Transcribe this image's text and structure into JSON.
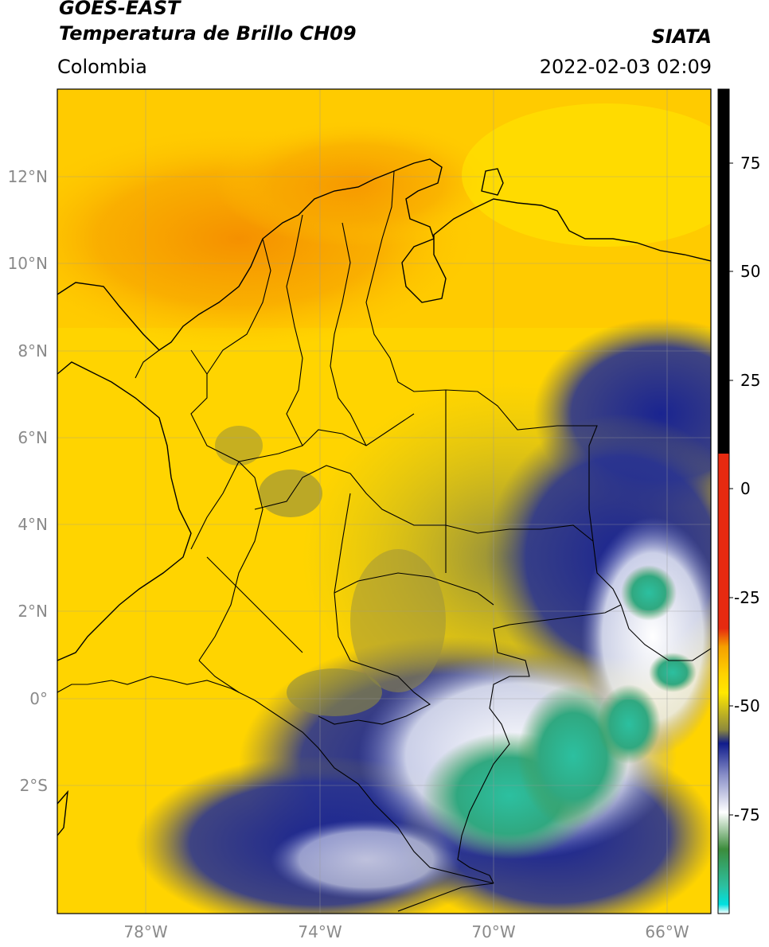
{
  "header": {
    "satellite": "GOES-EAST",
    "product": "Temperatura de Brillo CH09",
    "region": "Colombia",
    "agency": "SIATA",
    "datetime": "2022-02-03 02:09"
  },
  "map": {
    "lat_labels": [
      "12°N",
      "10°N",
      "8°N",
      "6°N",
      "4°N",
      "2°N",
      "0°",
      "2°S"
    ],
    "lon_labels": [
      "78°W",
      "74°W",
      "70°W",
      "66°W"
    ]
  },
  "colorbar": {
    "tick_labels": [
      "75",
      "50",
      "25",
      "0",
      "-25",
      "-50",
      "-75"
    ],
    "colors": {
      "black": "#000000",
      "red": "#e62a10",
      "orange": "#f5a000",
      "yellow": "#ffe800",
      "olive": "#8e8a3c",
      "navy": "#101c8c",
      "white": "#ffffff",
      "green": "#3c8c3c",
      "teal": "#2cc0a0",
      "cyan": "#00e0e0"
    }
  }
}
